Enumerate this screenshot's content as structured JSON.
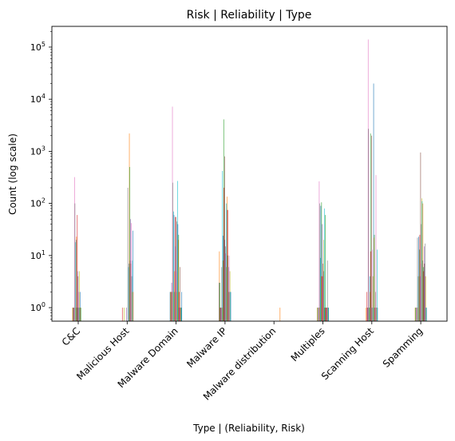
{
  "chart_data": {
    "type": "bar",
    "title": "Risk | Reliability | Type",
    "xlabel": "Type | (Reliability, Risk)",
    "ylabel": "Count (log scale)",
    "yscale": "log",
    "ylim": [
      0.55,
      250000
    ],
    "yticks": [
      {
        "value": 1,
        "base": "10",
        "exp": "0"
      },
      {
        "value": 10,
        "base": "10",
        "exp": "1"
      },
      {
        "value": 100,
        "base": "10",
        "exp": "2"
      },
      {
        "value": 1000,
        "base": "10",
        "exp": "3"
      },
      {
        "value": 10000,
        "base": "10",
        "exp": "4"
      },
      {
        "value": 100000,
        "base": "10",
        "exp": "5"
      }
    ],
    "grid": false,
    "categories": [
      "C&C",
      "Malicious Host",
      "Malware Domain",
      "Malware IP",
      "Malware distribution",
      "Multiples",
      "Scanning Host",
      "Spamming"
    ],
    "palette": [
      "#1f77b4",
      "#ff7f0e",
      "#2ca02c",
      "#d62728",
      "#9467bd",
      "#8c564b",
      "#e377c2",
      "#7f7f7f",
      "#bcbd22",
      "#17becf"
    ],
    "series": [
      {
        "values": [
          0,
          0,
          2,
          3,
          0,
          0,
          0,
          0
        ]
      },
      {
        "values": [
          1,
          0,
          2,
          12,
          0,
          1,
          1,
          1
        ]
      },
      {
        "values": [
          1,
          0,
          2,
          3,
          0,
          1,
          0,
          1
        ]
      },
      {
        "values": [
          1,
          1,
          2,
          1,
          0,
          0,
          2,
          0
        ]
      },
      {
        "values": [
          1,
          0,
          3,
          1,
          0,
          1,
          1,
          1
        ]
      },
      {
        "values": [
          1,
          0,
          2,
          1,
          0,
          1,
          1,
          1
        ]
      },
      {
        "values": [
          320,
          0,
          7200,
          1,
          0,
          265,
          140000,
          1
        ]
      },
      {
        "values": [
          100,
          0,
          250,
          6,
          0,
          100,
          2700,
          22
        ]
      },
      {
        "values": [
          1,
          1,
          2,
          1,
          0,
          1,
          1,
          1
        ]
      },
      {
        "values": [
          18,
          0,
          70,
          420,
          0,
          9,
          1,
          4
        ]
      },
      {
        "values": [
          20,
          0,
          60,
          24,
          0,
          90,
          4,
          23
        ]
      },
      {
        "values": [
          23,
          0,
          5,
          8,
          0,
          4,
          2,
          4
        ]
      },
      {
        "values": [
          1,
          0,
          2,
          4100,
          0,
          105,
          2200,
          13
        ]
      },
      {
        "values": [
          60,
          0,
          55,
          200,
          0,
          4,
          12,
          25
        ]
      },
      {
        "values": [
          5,
          1,
          15,
          20,
          0,
          40,
          1,
          4
        ]
      },
      {
        "values": [
          4,
          0,
          55,
          800,
          0,
          7,
          2000,
          950
        ]
      },
      {
        "values": [
          2,
          0,
          5,
          11,
          0,
          4,
          13,
          7
        ]
      },
      {
        "values": [
          1,
          200,
          45,
          15,
          0,
          5,
          1,
          40
        ]
      },
      {
        "values": [
          5,
          0,
          2,
          6,
          0,
          20,
          4,
          125
        ]
      },
      {
        "values": [
          1,
          6,
          270,
          100,
          0,
          80,
          1,
          110
        ]
      },
      {
        "values": [
          2,
          7,
          40,
          75,
          0,
          1,
          20000,
          8
        ]
      },
      {
        "values": [
          1,
          2200,
          20,
          135,
          0,
          1,
          22,
          100
        ]
      },
      {
        "values": [
          1,
          500,
          25,
          10,
          0,
          60,
          25,
          6
        ]
      },
      {
        "values": [
          0,
          8,
          2,
          75,
          0,
          1,
          1,
          5
        ]
      },
      {
        "values": [
          0,
          50,
          1,
          6,
          0,
          1,
          1,
          15
        ]
      },
      {
        "values": [
          0,
          7,
          6,
          2,
          0,
          1,
          2,
          7
        ]
      },
      {
        "values": [
          0,
          42,
          1,
          10,
          0,
          1,
          350,
          4
        ]
      },
      {
        "values": [
          0,
          4,
          1,
          2,
          0,
          8,
          1,
          17
        ]
      },
      {
        "values": [
          0,
          2,
          1,
          5,
          0,
          1,
          1,
          4
        ]
      },
      {
        "values": [
          0,
          8,
          1,
          2,
          0,
          1,
          13,
          1
        ]
      },
      {
        "values": [
          0,
          30,
          2,
          2,
          0,
          1,
          1,
          1
        ]
      },
      {
        "values": [
          0,
          2,
          0,
          0,
          1,
          0,
          0,
          0
        ]
      }
    ]
  }
}
